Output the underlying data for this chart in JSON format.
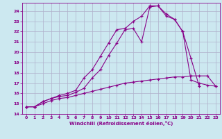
{
  "background_color": "#cce8f0",
  "grid_color": "#b0b0cc",
  "line_color": "#880088",
  "xlabel": "Windchill (Refroidissement éolien,°C)",
  "xlim": [
    -0.5,
    23.5
  ],
  "ylim": [
    14,
    24.8
  ],
  "yticks": [
    14,
    15,
    16,
    17,
    18,
    19,
    20,
    21,
    22,
    23,
    24
  ],
  "xticks": [
    0,
    1,
    2,
    3,
    4,
    5,
    6,
    7,
    8,
    9,
    10,
    11,
    12,
    13,
    14,
    15,
    16,
    17,
    18,
    19,
    20,
    21,
    22,
    23
  ],
  "series": [
    {
      "x": [
        0,
        1,
        2,
        3,
        4,
        5,
        6,
        7,
        8,
        9,
        10,
        11,
        12,
        13,
        14,
        15,
        16,
        17,
        18,
        19,
        20,
        21,
        22,
        23
      ],
      "y": [
        14.7,
        14.7,
        15.0,
        15.3,
        15.5,
        15.6,
        15.8,
        16.0,
        16.2,
        16.4,
        16.6,
        16.8,
        17.0,
        17.1,
        17.2,
        17.3,
        17.4,
        17.5,
        17.6,
        17.6,
        17.7,
        17.7,
        17.7,
        16.7
      ]
    },
    {
      "x": [
        0,
        1,
        2,
        3,
        4,
        5,
        6,
        7,
        8,
        9,
        10,
        11,
        12,
        13,
        14,
        15,
        16,
        17,
        18,
        19,
        20,
        21
      ],
      "y": [
        14.7,
        14.7,
        15.2,
        15.5,
        15.7,
        15.8,
        16.1,
        16.5,
        17.5,
        18.3,
        19.7,
        20.9,
        22.2,
        22.3,
        21.0,
        24.4,
        24.5,
        23.7,
        23.2,
        22.0,
        19.4,
        16.7
      ]
    },
    {
      "x": [
        0,
        1,
        2,
        3,
        4,
        5,
        6,
        7,
        8,
        9,
        10,
        11,
        12,
        13,
        14,
        15,
        16,
        17,
        18,
        19,
        20,
        21,
        22,
        23
      ],
      "y": [
        14.7,
        14.7,
        15.2,
        15.5,
        15.8,
        16.0,
        16.3,
        17.5,
        18.3,
        19.6,
        20.9,
        22.2,
        22.3,
        23.0,
        23.5,
        24.5,
        24.5,
        23.5,
        23.2,
        22.0,
        17.3,
        17.0,
        16.8,
        16.7
      ]
    }
  ]
}
